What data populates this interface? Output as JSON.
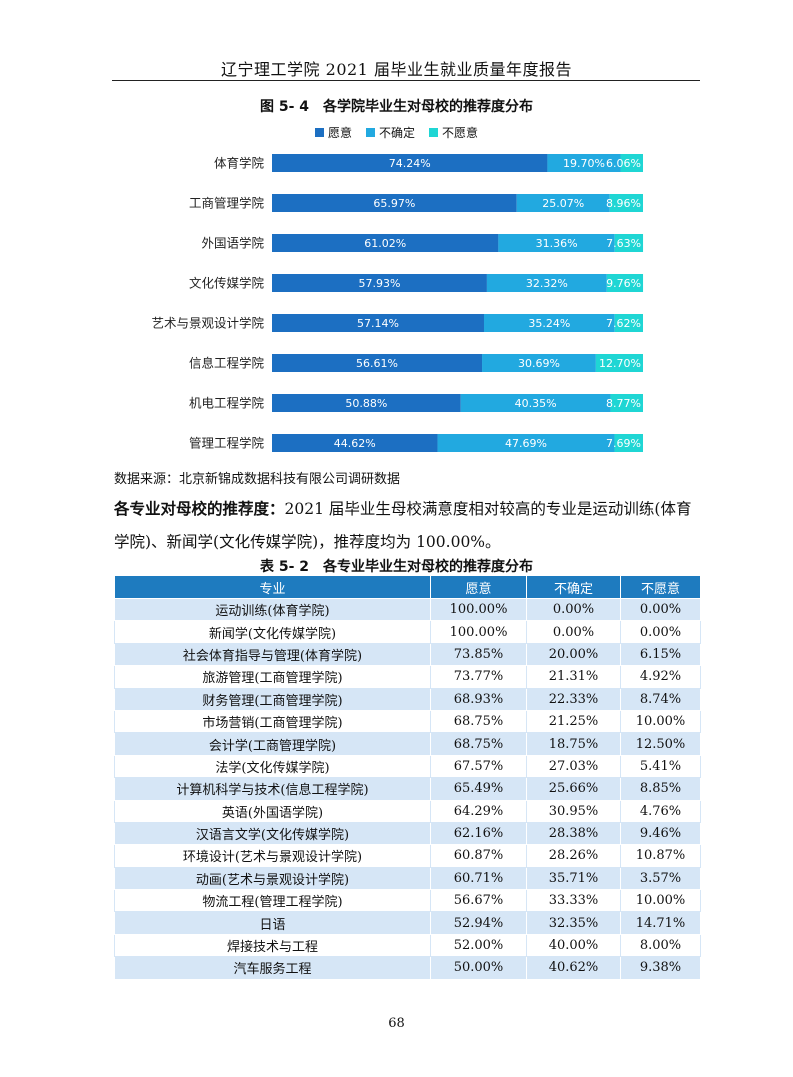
{
  "header": {
    "title": "辽宁理工学院 2021 届毕业生就业质量年度报告"
  },
  "figure": {
    "caption": "图 5- 4　各学院毕业生对母校的推荐度分布",
    "source": "数据来源：北京新锦成数据科技有限公司调研数据"
  },
  "colors": {
    "willing": "#1c6fc2",
    "unsure": "#22a9e0",
    "unwilling": "#1fd6d4",
    "table_header": "#1e7bbf",
    "table_stripe": "#d6e6f6"
  },
  "chart_data": {
    "type": "bar",
    "orientation": "horizontal",
    "stacked": true,
    "categories": [
      "体育学院",
      "工商管理学院",
      "外国语学院",
      "文化传媒学院",
      "艺术与景观设计学院",
      "信息工程学院",
      "机电工程学院",
      "管理工程学院"
    ],
    "series": [
      {
        "name": "愿意",
        "values": [
          74.24,
          65.97,
          61.02,
          57.93,
          57.14,
          56.61,
          50.88,
          44.62
        ],
        "labels": [
          "74.24%",
          "65.97%",
          "61.02%",
          "57.93%",
          "57.14%",
          "56.61%",
          "50.88%",
          "44.62%"
        ]
      },
      {
        "name": "不确定",
        "values": [
          19.7,
          25.07,
          31.36,
          32.32,
          35.24,
          30.69,
          40.35,
          47.69
        ],
        "labels": [
          "19.70%",
          "25.07%",
          "31.36%",
          "32.32%",
          "35.24%",
          "30.69%",
          "40.35%",
          "47.69%"
        ]
      },
      {
        "name": "不愿意",
        "values": [
          6.06,
          8.96,
          7.63,
          9.76,
          7.62,
          12.7,
          8.77,
          7.69
        ],
        "labels": [
          "6.06%",
          "8.96%",
          "7.63%",
          "9.76%",
          "7.62%",
          "12.70%",
          "8.77%",
          "7.69%"
        ]
      }
    ],
    "legend_position": "top-center",
    "xlim": [
      0,
      100
    ]
  },
  "paragraph": {
    "lead": "各专业对母校的推荐度：",
    "body": "2021 届毕业生母校满意度相对较高的专业是运动训练(体育学院)、新闻学(文化传媒学院)，推荐度均为 100.00%。"
  },
  "table": {
    "caption": "表 5- 2　各专业毕业生对母校的推荐度分布",
    "columns": [
      "专业",
      "愿意",
      "不确定",
      "不愿意"
    ],
    "rows": [
      [
        "运动训练(体育学院)",
        "100.00%",
        "0.00%",
        "0.00%"
      ],
      [
        "新闻学(文化传媒学院)",
        "100.00%",
        "0.00%",
        "0.00%"
      ],
      [
        "社会体育指导与管理(体育学院)",
        "73.85%",
        "20.00%",
        "6.15%"
      ],
      [
        "旅游管理(工商管理学院)",
        "73.77%",
        "21.31%",
        "4.92%"
      ],
      [
        "财务管理(工商管理学院)",
        "68.93%",
        "22.33%",
        "8.74%"
      ],
      [
        "市场营销(工商管理学院)",
        "68.75%",
        "21.25%",
        "10.00%"
      ],
      [
        "会计学(工商管理学院)",
        "68.75%",
        "18.75%",
        "12.50%"
      ],
      [
        "法学(文化传媒学院)",
        "67.57%",
        "27.03%",
        "5.41%"
      ],
      [
        "计算机科学与技术(信息工程学院)",
        "65.49%",
        "25.66%",
        "8.85%"
      ],
      [
        "英语(外国语学院)",
        "64.29%",
        "30.95%",
        "4.76%"
      ],
      [
        "汉语言文学(文化传媒学院)",
        "62.16%",
        "28.38%",
        "9.46%"
      ],
      [
        "环境设计(艺术与景观设计学院)",
        "60.87%",
        "28.26%",
        "10.87%"
      ],
      [
        "动画(艺术与景观设计学院)",
        "60.71%",
        "35.71%",
        "3.57%"
      ],
      [
        "物流工程(管理工程学院)",
        "56.67%",
        "33.33%",
        "10.00%"
      ],
      [
        "日语",
        "52.94%",
        "32.35%",
        "14.71%"
      ],
      [
        "焊接技术与工程",
        "52.00%",
        "40.00%",
        "8.00%"
      ],
      [
        "汽车服务工程",
        "50.00%",
        "40.62%",
        "9.38%"
      ]
    ]
  },
  "footer": {
    "page_number": "68"
  }
}
